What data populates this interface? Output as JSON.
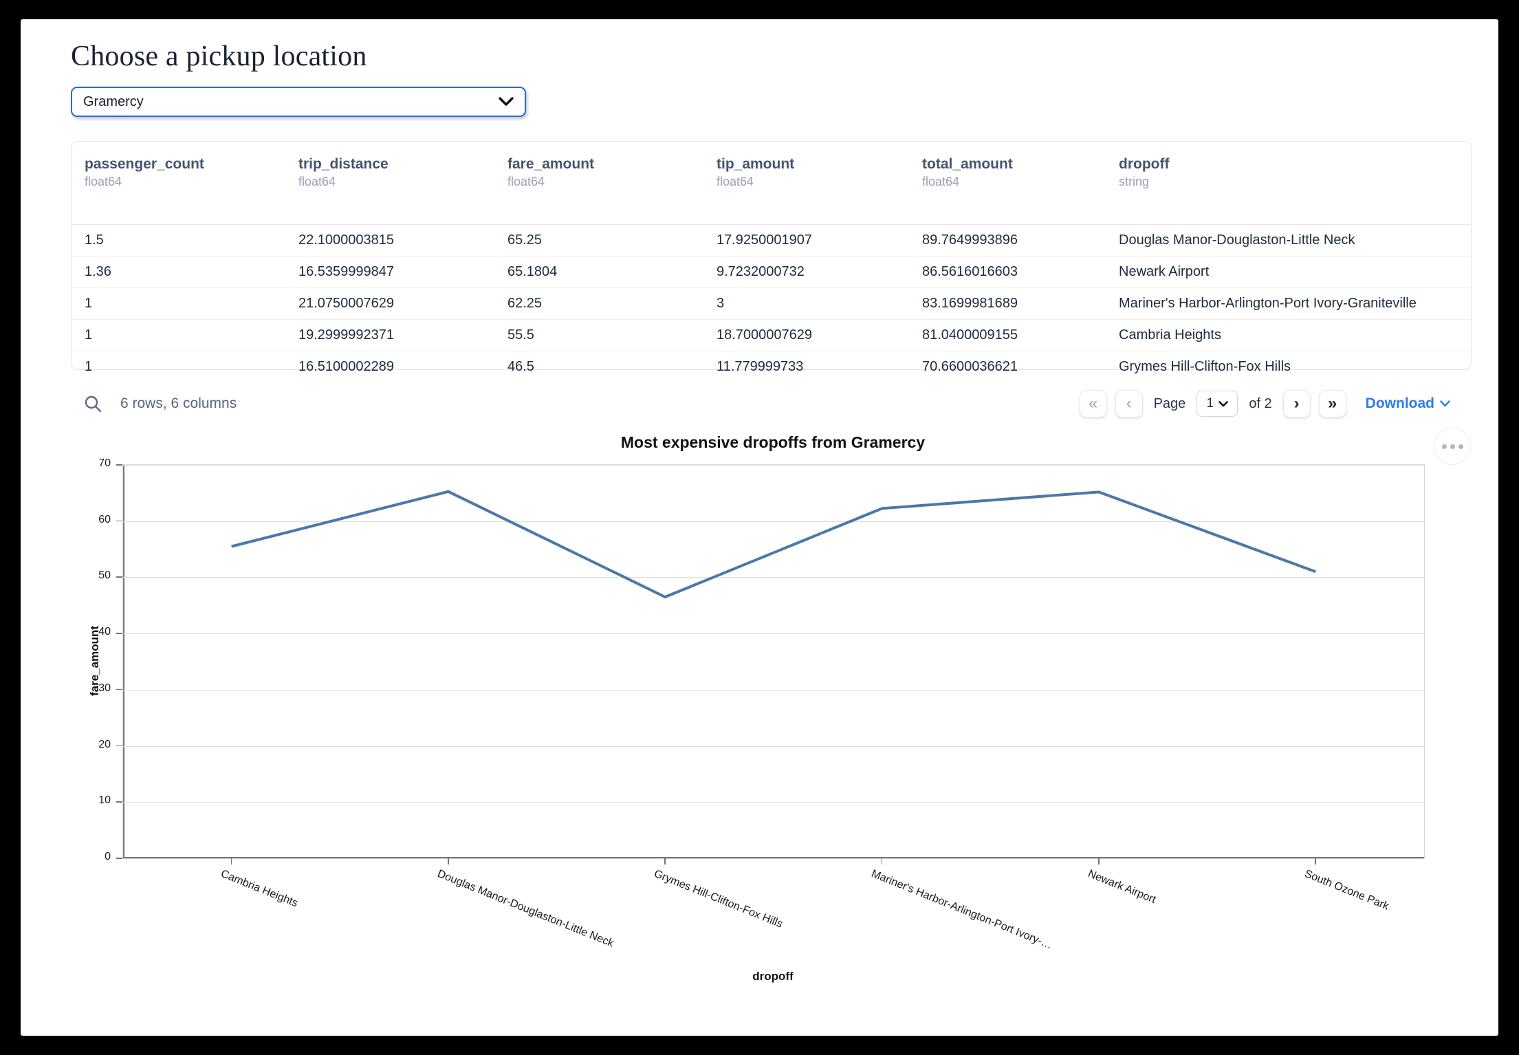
{
  "page": {
    "title": "Choose a pickup location"
  },
  "picker": {
    "value": "Gramercy",
    "chevron_icon": "chevron-down"
  },
  "colors": {
    "accent": "#2569df",
    "link": "#2e7de9",
    "line": "#4c78a8"
  },
  "table": {
    "columns": [
      {
        "name": "passenger_count",
        "dtype": "float64"
      },
      {
        "name": "trip_distance",
        "dtype": "float64"
      },
      {
        "name": "fare_amount",
        "dtype": "float64"
      },
      {
        "name": "tip_amount",
        "dtype": "float64"
      },
      {
        "name": "total_amount",
        "dtype": "float64"
      },
      {
        "name": "dropoff",
        "dtype": "string"
      }
    ],
    "rows": [
      [
        "1.5",
        "22.1000003815",
        "65.25",
        "17.9250001907",
        "89.7649993896",
        "Douglas Manor-Douglaston-Little Neck"
      ],
      [
        "1.36",
        "16.5359999847",
        "65.1804",
        "9.7232000732",
        "86.5616016603",
        "Newark Airport"
      ],
      [
        "1",
        "21.0750007629",
        "62.25",
        "3",
        "83.1699981689",
        "Mariner's Harbor-Arlington-Port Ivory-Graniteville"
      ],
      [
        "1",
        "19.2999992371",
        "55.5",
        "18.7000007629",
        "81.0400009155",
        "Cambria Heights"
      ],
      [
        "1",
        "16.5100002289",
        "46.5",
        "11.779999733",
        "70.6600036621",
        "Grymes Hill-Clifton-Fox Hills"
      ]
    ]
  },
  "footer": {
    "summary": "6 rows, 6 columns",
    "pager": {
      "first": "«",
      "prev": "‹",
      "next": "›",
      "last": "»"
    },
    "page_label": "Page",
    "page_value": "1",
    "of_label": "of 2",
    "download_label": "Download"
  },
  "chart_data": {
    "type": "line",
    "title": "Most expensive dropoffs from Gramercy",
    "xlabel": "dropoff",
    "ylabel": "fare_amount",
    "categories": [
      "Cambria Heights",
      "Douglas Manor-Douglaston-Little Neck",
      "Grymes Hill-Clifton-Fox Hills",
      "Mariner's Harbor-Arlington-Port Ivory-…",
      "Newark Airport",
      "South Ozone Park"
    ],
    "values": [
      55.5,
      65.25,
      46.5,
      62.25,
      65.1804,
      51
    ],
    "ylim": [
      0,
      70
    ],
    "yticks": [
      0,
      10,
      20,
      30,
      40,
      50,
      60,
      70
    ],
    "grid": true,
    "legend": "none",
    "line_color": "#4c78a8"
  }
}
